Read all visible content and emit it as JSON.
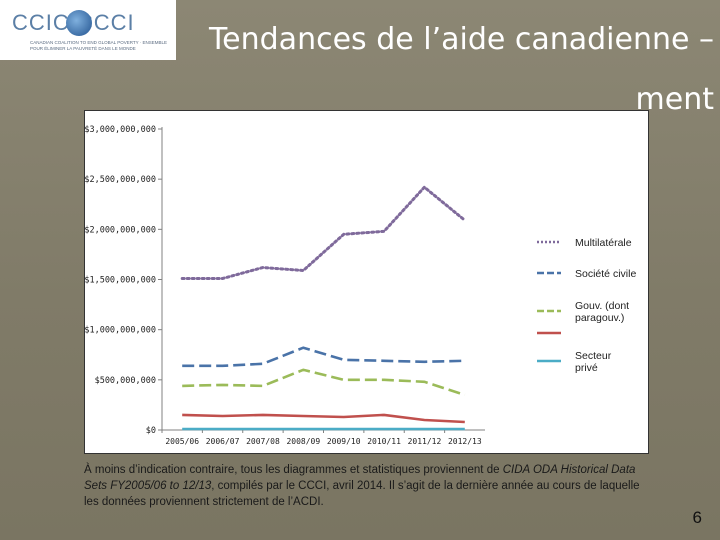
{
  "logo": {
    "text": "CCIC CCCI",
    "subtitle": "CANADIAN COALITION TO END GLOBAL POVERTY · ENSEMBLE POUR ÉLIMINER LA PAUVRETÉ DANS LE MONDE"
  },
  "slide": {
    "title": "Tendances de l’aide canadienne – ment",
    "page_number": "6"
  },
  "footnote": {
    "prefix": "À moins d’indication contraire, tous les diagrammes et statistiques proviennent de ",
    "source_italic": "CIDA ODA Historical Data Sets FY2005/06 to 12/13",
    "suffix": ", compilés par le CCCI, avril 2014. Il s’agit de la dernière année au cours de laquelle les données proviennent strictement de l’ACDI."
  },
  "chart_data": {
    "type": "line",
    "title": "",
    "xlabel": "",
    "ylabel": "",
    "categories": [
      "2005/06",
      "2006/07",
      "2007/08",
      "2008/09",
      "2009/10",
      "2010/11",
      "2011/12",
      "2012/13"
    ],
    "ylim": [
      0,
      3000000000
    ],
    "yticks": [
      {
        "value": 0,
        "label": "$0"
      },
      {
        "value": 500000000,
        "label": "$500,000,000"
      },
      {
        "value": 1000000000,
        "label": "$1,000,000,000"
      },
      {
        "value": 1500000000,
        "label": "$1,500,000,000"
      },
      {
        "value": 2000000000,
        "label": "$2,000,000,000"
      },
      {
        "value": 2500000000,
        "label": "$2,500,000,000"
      },
      {
        "value": 3000000000,
        "label": "$3,000,000,000"
      }
    ],
    "grid": false,
    "legend_position": "right",
    "series": [
      {
        "name": "Multilatérale",
        "color": "#7f6a9b",
        "style": "dotted",
        "values": [
          1510000000,
          1510000000,
          1620000000,
          1590000000,
          1950000000,
          1980000000,
          2420000000,
          2090000000
        ]
      },
      {
        "name": "Société civile",
        "color": "#4a73a8",
        "style": "dashed",
        "values": [
          640000000,
          640000000,
          660000000,
          820000000,
          700000000,
          690000000,
          680000000,
          690000000
        ]
      },
      {
        "name": "Gouv. (dont paragouv.)",
        "color": "#9bbb59",
        "style": "dashed",
        "values": [
          440000000,
          450000000,
          440000000,
          600000000,
          500000000,
          500000000,
          480000000,
          350000000
        ]
      },
      {
        "name": "",
        "color": "#c0504d",
        "style": "solid",
        "values": [
          150000000,
          140000000,
          150000000,
          140000000,
          130000000,
          150000000,
          100000000,
          80000000
        ]
      },
      {
        "name": "Secteur privé",
        "color": "#4bacc6",
        "style": "solid",
        "values": [
          10000000,
          10000000,
          10000000,
          10000000,
          10000000,
          10000000,
          10000000,
          10000000
        ]
      }
    ]
  }
}
